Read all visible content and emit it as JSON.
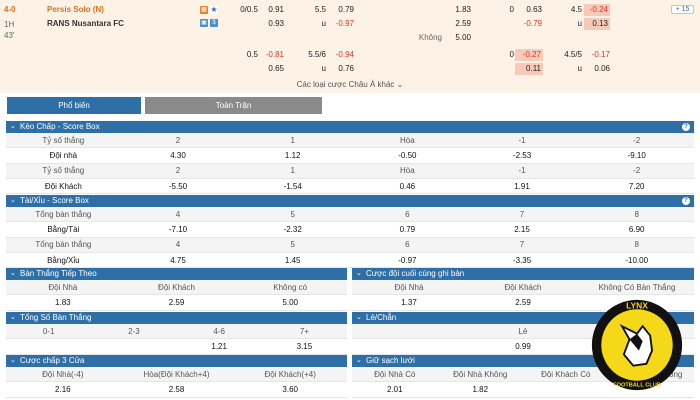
{
  "match": {
    "score": "4-0",
    "period": "1H",
    "minute": "43'",
    "home": "Persis Solo (N)",
    "away": "RANS Nusantara FC",
    "draw_label": "Không",
    "more_link": "Các loại cược Châu Á khác",
    "expand_label": "+ 15"
  },
  "top_odds": {
    "r1": {
      "hcp": "0/0.5",
      "h1": "0.91",
      "ou": "5.5",
      "o1": "0.79",
      "x1": "1.83",
      "hcp2": "0",
      "h2": "0.63",
      "ou2": "4.5",
      "o2": "-0.24"
    },
    "r2": {
      "h1": "0.93",
      "u": "u",
      "o1": "-0.97",
      "x1": "2.59",
      "h2": "-0.79",
      "u2": "u",
      "o2": "0.13"
    },
    "r3": {
      "x1": "5.00"
    },
    "r4": {
      "hcp": "0.5",
      "h1": "-0.81",
      "ou": "5.5/6",
      "o1": "-0.94",
      "hcp2": "0",
      "h2": "-0.27",
      "ou2": "4.5/5",
      "o2": "-0.17"
    },
    "r5": {
      "h1": "0.65",
      "u": "u",
      "o1": "0.76",
      "h2": "0.11",
      "u2": "u",
      "o2": "0.06"
    }
  },
  "tabs": {
    "popular": "Phổ biến",
    "full": "Toàn Trận"
  },
  "handicap_box": {
    "title": "Kèo Chấp - Score Box",
    "rows": [
      {
        "cells": [
          "Tỷ số thắng",
          "2",
          "1",
          "Hòa",
          "-1",
          "-2"
        ]
      },
      {
        "cells": [
          "Đội nhà",
          "4.30",
          "1.12",
          "-0.50",
          "-2.53",
          "-9.10"
        ]
      },
      {
        "cells": [
          "Tỷ số thắng",
          "2",
          "1",
          "Hòa",
          "-1",
          "-2"
        ]
      },
      {
        "cells": [
          "Đội Khách",
          "-5.50",
          "-1.54",
          "0.46",
          "1.91",
          "7.20"
        ]
      }
    ]
  },
  "ou_box": {
    "title": "Tài/Xỉu - Score Box",
    "rows": [
      {
        "cells": [
          "Tổng bàn thắng",
          "4",
          "5",
          "6",
          "7",
          "8"
        ]
      },
      {
        "cells": [
          "Bằng/Tài",
          "-7.10",
          "-2.32",
          "0.79",
          "2.15",
          "6.90"
        ]
      },
      {
        "cells": [
          "Tổng bàn thắng",
          "4",
          "5",
          "6",
          "7",
          "8"
        ]
      },
      {
        "cells": [
          "Bằng/Xỉu",
          "4.75",
          "1.45",
          "-0.97",
          "-3.35",
          "-10.00"
        ]
      }
    ]
  },
  "next_goal": {
    "title": "Bàn Thắng Tiếp Theo",
    "labels": [
      "Đội Nhà",
      "Đội Khách",
      "Không có"
    ],
    "values": [
      "1.83",
      "2.59",
      "5.00"
    ]
  },
  "last_goal": {
    "title": "Cược đội cuối cùng ghi bàn",
    "labels": [
      "Đội Nhà",
      "Đội Khách",
      "Không Có Bàn Thắng"
    ],
    "values": [
      "1.37",
      "2.59",
      ""
    ]
  },
  "total_goals": {
    "title": "Tổng Số Bàn Thắng",
    "labels": [
      "0-1",
      "2-3",
      "4-6",
      "7+"
    ],
    "values": [
      "",
      "",
      "1.21",
      "3.15"
    ]
  },
  "odd_even": {
    "title": "Lẻ/Chẵn",
    "labels": [
      "Lẻ"
    ],
    "values": [
      "0.99"
    ]
  },
  "three_way": {
    "title": "Cược chấp 3 Cửa",
    "labels": [
      "Đội Nhà(-4)",
      "Hòa(Đội Khách+4)",
      "Đội Khách(+4)"
    ],
    "values": [
      "2.16",
      "2.58",
      "3.60"
    ]
  },
  "clean_sheet": {
    "title": "Giữ sạch lưới",
    "labels": [
      "Đội Nhà Có",
      "Đội Nhà Không",
      "Đội Khách Có",
      "Đội Khách Không"
    ],
    "values": [
      "2.01",
      "1.82",
      "",
      ""
    ]
  },
  "logo": {
    "top_text": "LYNX",
    "bottom_text": "FOOTBALL CLUB"
  },
  "colors": {
    "header_blue": "#2f6fa7",
    "accent_orange": "#e0701b",
    "negative_red": "#d83a2a",
    "highlight": "#f7c9b8",
    "logo_yellow": "#f5d817"
  }
}
